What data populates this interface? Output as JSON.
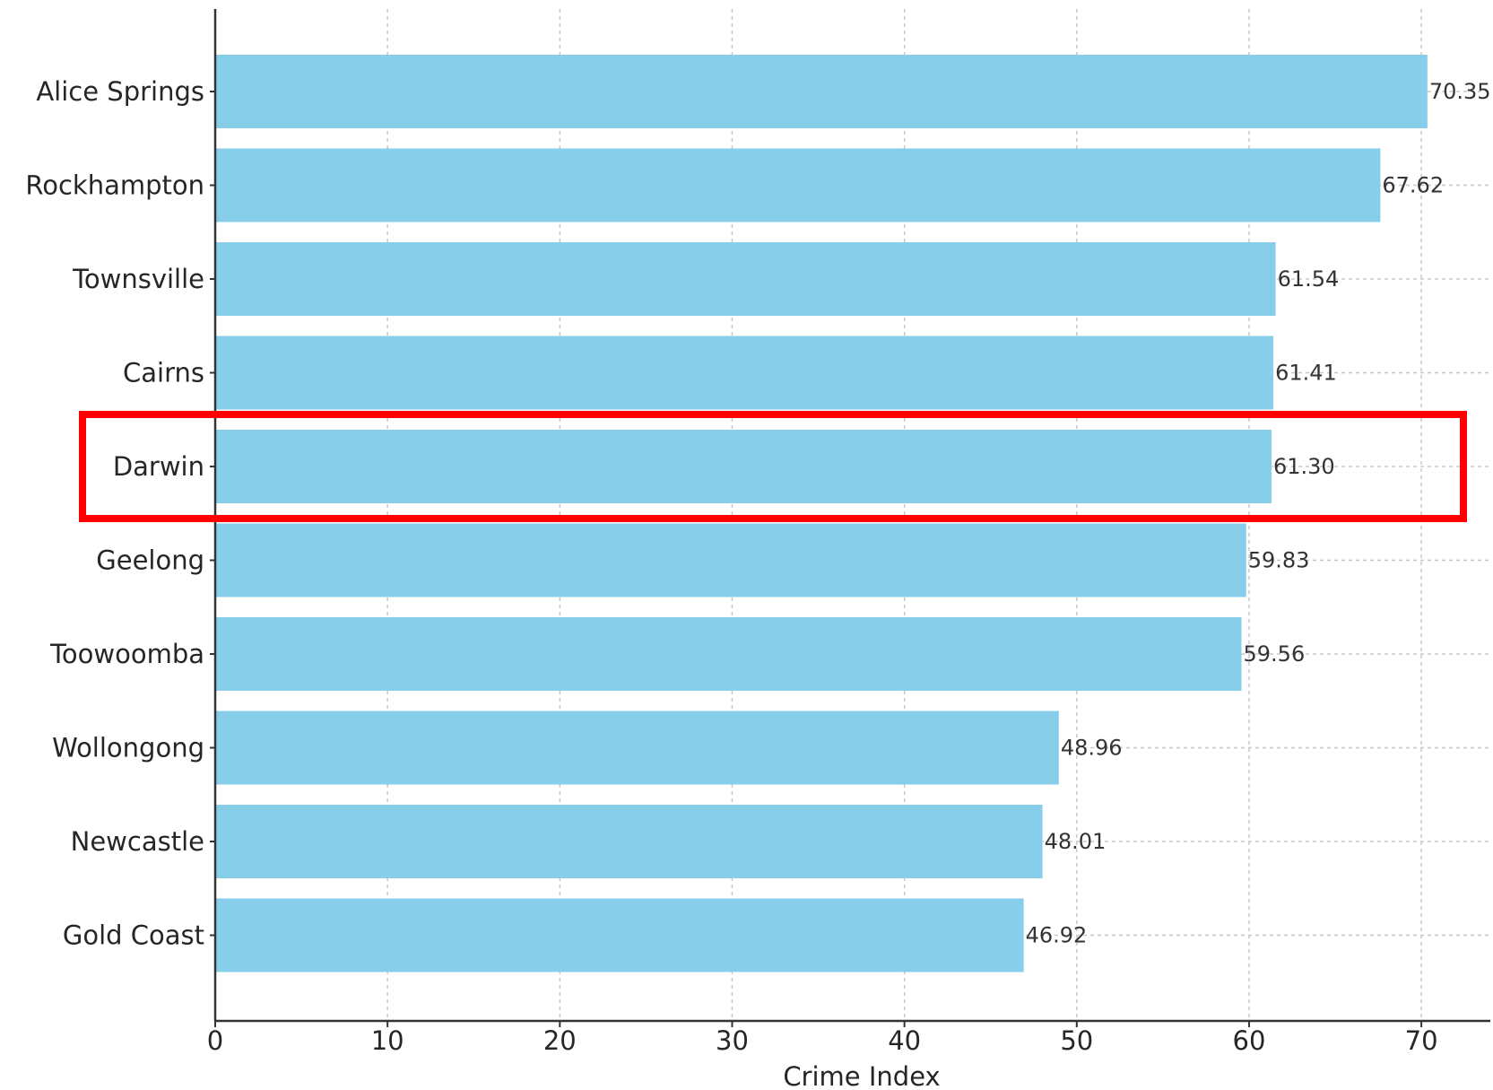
{
  "chart_data": {
    "type": "bar",
    "orientation": "horizontal",
    "categories": [
      "Alice Springs",
      "Rockhampton",
      "Townsville",
      "Cairns",
      "Darwin",
      "Geelong",
      "Toowoomba",
      "Wollongong",
      "Newcastle",
      "Gold Coast"
    ],
    "values": [
      70.35,
      67.62,
      61.54,
      61.41,
      61.3,
      59.83,
      59.56,
      48.96,
      48.01,
      46.92
    ],
    "value_labels": [
      "70.35",
      "67.62",
      "61.54",
      "61.41",
      "61.30",
      "59.83",
      "59.56",
      "48.96",
      "48.01",
      "46.92"
    ],
    "title": "",
    "xlabel": "Crime Index",
    "ylabel": "",
    "xlim": [
      0,
      74
    ],
    "xticks": [
      0,
      10,
      20,
      30,
      40,
      50,
      60,
      70
    ],
    "grid": true,
    "highlighted_category": "Darwin",
    "colors": {
      "bar": "#87CEEB",
      "highlight": "#ff0000"
    }
  }
}
